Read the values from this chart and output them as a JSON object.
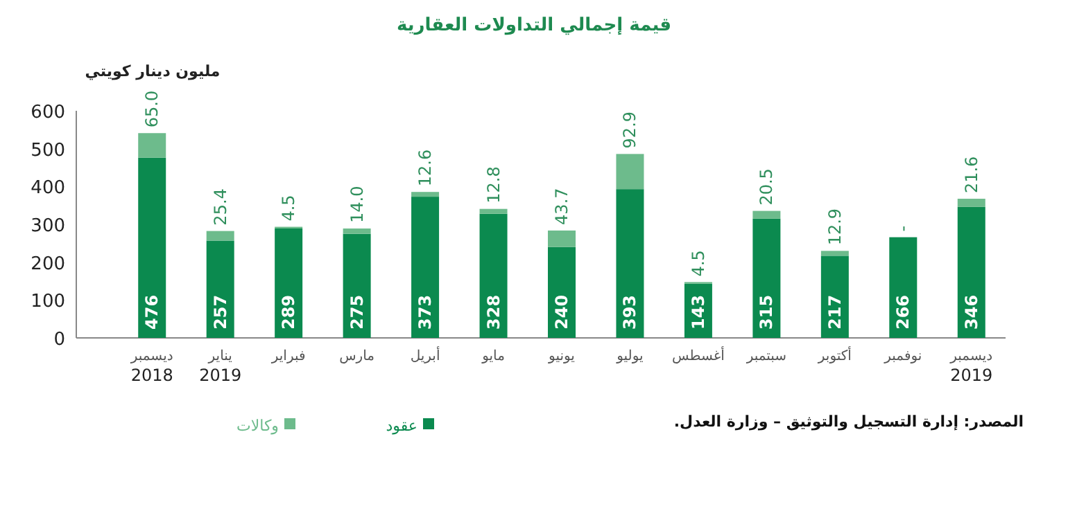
{
  "chart_data": {
    "type": "bar",
    "stacked": true,
    "title": "قيمة إجمالي التداولات العقارية",
    "ylabel": "مليون دينار كويتي",
    "categories": [
      "ديسمبر\n2018",
      "يناير\n2019",
      "فبراير",
      "مارس",
      "أبريل",
      "مايو",
      "يونيو",
      "يوليو",
      "أغسطس",
      "سبتمبر",
      "أكتوبر",
      "نوفمبر",
      "ديسمبر\n2019"
    ],
    "series": [
      {
        "name": "عقود",
        "color": "#0b8a4f",
        "values": [
          476,
          257,
          289,
          275,
          373,
          328,
          240,
          393,
          143,
          315,
          217,
          266,
          346
        ],
        "value_labels": [
          "476",
          "257",
          "289",
          "275",
          "373",
          "328",
          "240",
          "393",
          "143",
          "315",
          "217",
          "266",
          "346"
        ]
      },
      {
        "name": "وكالات",
        "color": "#6dbb8c",
        "values": [
          65.0,
          25.4,
          4.5,
          14.0,
          12.6,
          12.8,
          43.7,
          92.9,
          4.5,
          20.5,
          12.9,
          0,
          21.6
        ],
        "value_labels": [
          "65.0",
          "25.4",
          "4.5",
          "14.0",
          "12.6",
          "12.8",
          "43.7",
          "92.9",
          "4.5",
          "20.5",
          "12.9",
          "-",
          "21.6"
        ]
      }
    ],
    "ylim": [
      0,
      600
    ],
    "yticks": [
      0,
      100,
      200,
      300,
      400,
      500,
      600
    ],
    "grid": false,
    "legend": "bottom left",
    "annotations": [
      "المصدر: إدارة التسجيل والتوثيق – وزارة العدل."
    ]
  }
}
